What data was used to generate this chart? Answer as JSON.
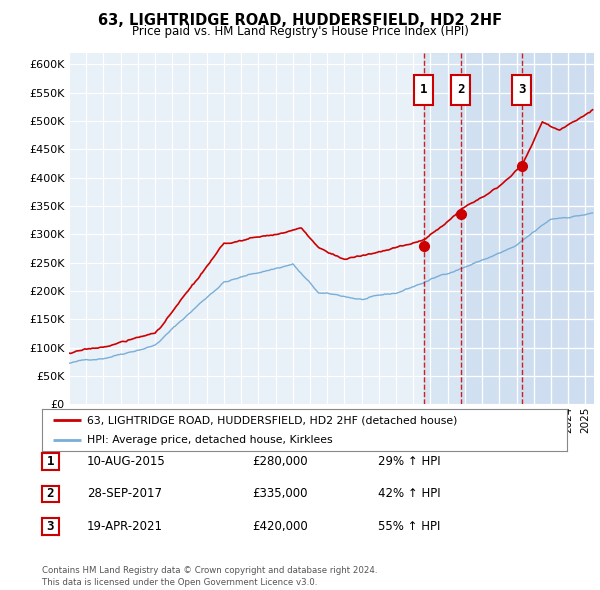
{
  "title": "63, LIGHTRIDGE ROAD, HUDDERSFIELD, HD2 2HF",
  "subtitle": "Price paid vs. HM Land Registry's House Price Index (HPI)",
  "legend_line1": "63, LIGHTRIDGE ROAD, HUDDERSFIELD, HD2 2HF (detached house)",
  "legend_line2": "HPI: Average price, detached house, Kirklees",
  "red_color": "#cc0000",
  "blue_color": "#7aaed6",
  "chart_bg": "#e8f0f8",
  "shade_color": "#ccddf0",
  "sale_dates": [
    2015.61,
    2017.747,
    2021.3
  ],
  "sale_prices": [
    280000,
    335000,
    420000
  ],
  "sale_labels": [
    {
      "num": "1",
      "date": "10-AUG-2015",
      "price": "£280,000",
      "pct": "29% ↑ HPI"
    },
    {
      "num": "2",
      "date": "28-SEP-2017",
      "price": "£335,000",
      "pct": "42% ↑ HPI"
    },
    {
      "num": "3",
      "date": "19-APR-2021",
      "price": "£420,000",
      "pct": "55% ↑ HPI"
    }
  ],
  "footer": "Contains HM Land Registry data © Crown copyright and database right 2024.\nThis data is licensed under the Open Government Licence v3.0.",
  "ylim": [
    0,
    620000
  ],
  "xlim_start": 1995.0,
  "xlim_end": 2025.5,
  "yticks": [
    0,
    50000,
    100000,
    150000,
    200000,
    250000,
    300000,
    350000,
    400000,
    450000,
    500000,
    550000,
    600000
  ]
}
